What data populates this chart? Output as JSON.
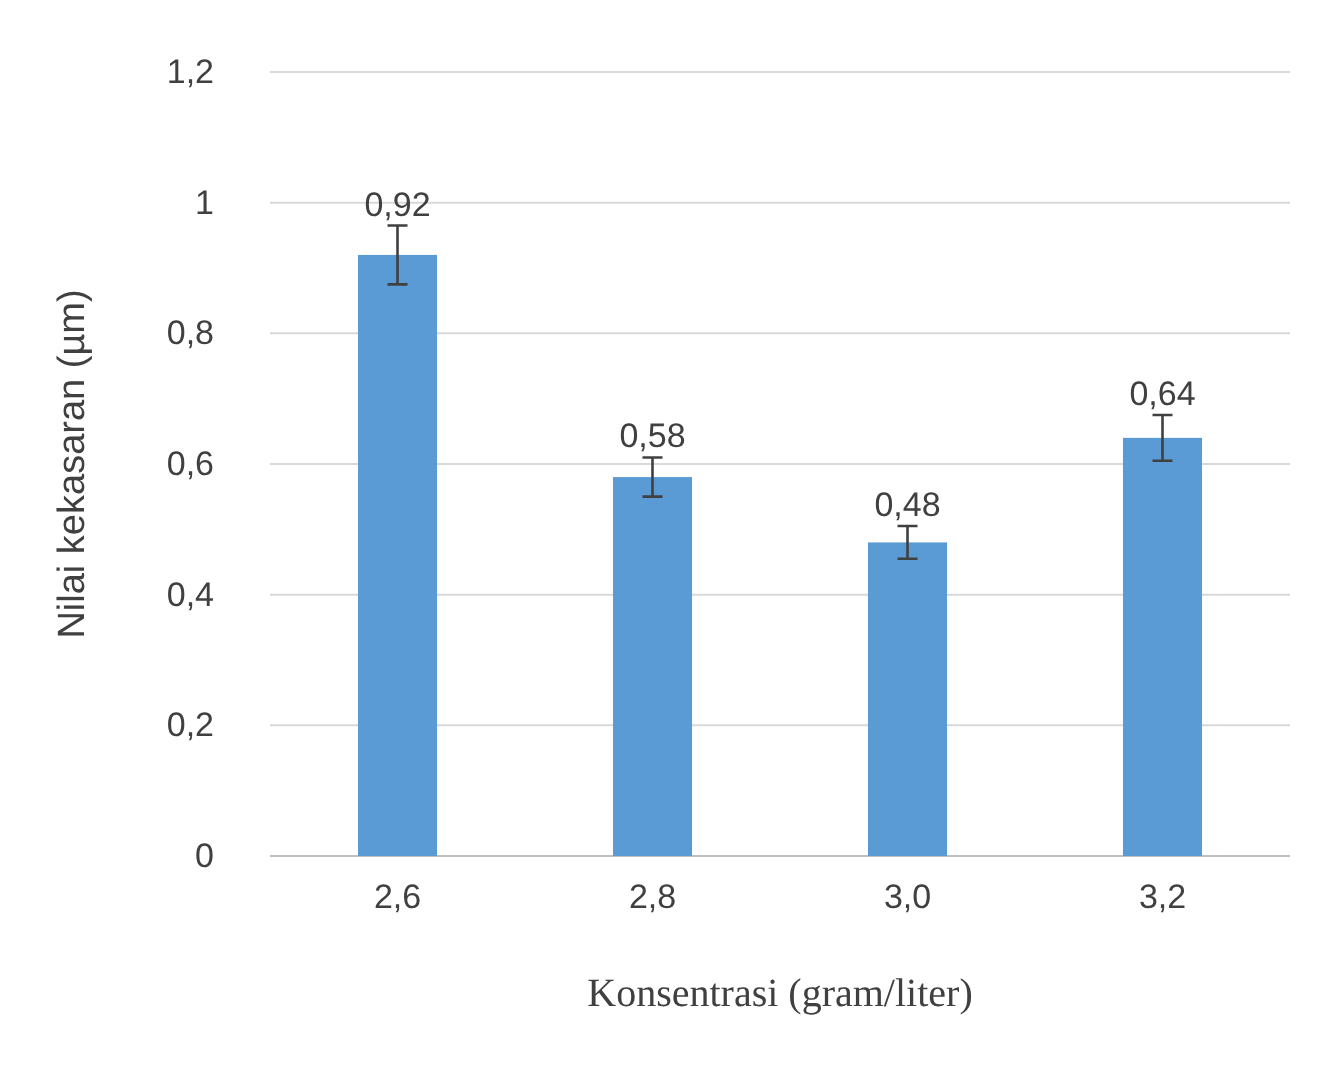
{
  "chart_data": {
    "type": "bar",
    "xlabel": "Konsentrasi (gram/liter)",
    "ylabel": "Nilai kekasaran (µm)",
    "categories": [
      "2,6",
      "2,8",
      "3,0",
      "3,2"
    ],
    "values": [
      0.92,
      0.58,
      0.48,
      0.64
    ],
    "errors": [
      0.045,
      0.03,
      0.025,
      0.035
    ],
    "value_labels": [
      "0,92",
      "0,58",
      "0,48",
      "0,64"
    ],
    "color": "#5b9bd5",
    "ylim": [
      0,
      1.2
    ],
    "yticks": [
      0,
      {
        "value": 0.2,
        "label": "0,2"
      },
      {
        "value": 0.4,
        "label": "0,4"
      },
      {
        "value": 0.6,
        "label": "0,6"
      },
      {
        "value": 0.8,
        "label": "0,8"
      },
      1,
      {
        "value": 1.2,
        "label": "1,2"
      }
    ],
    "grid": "y"
  }
}
